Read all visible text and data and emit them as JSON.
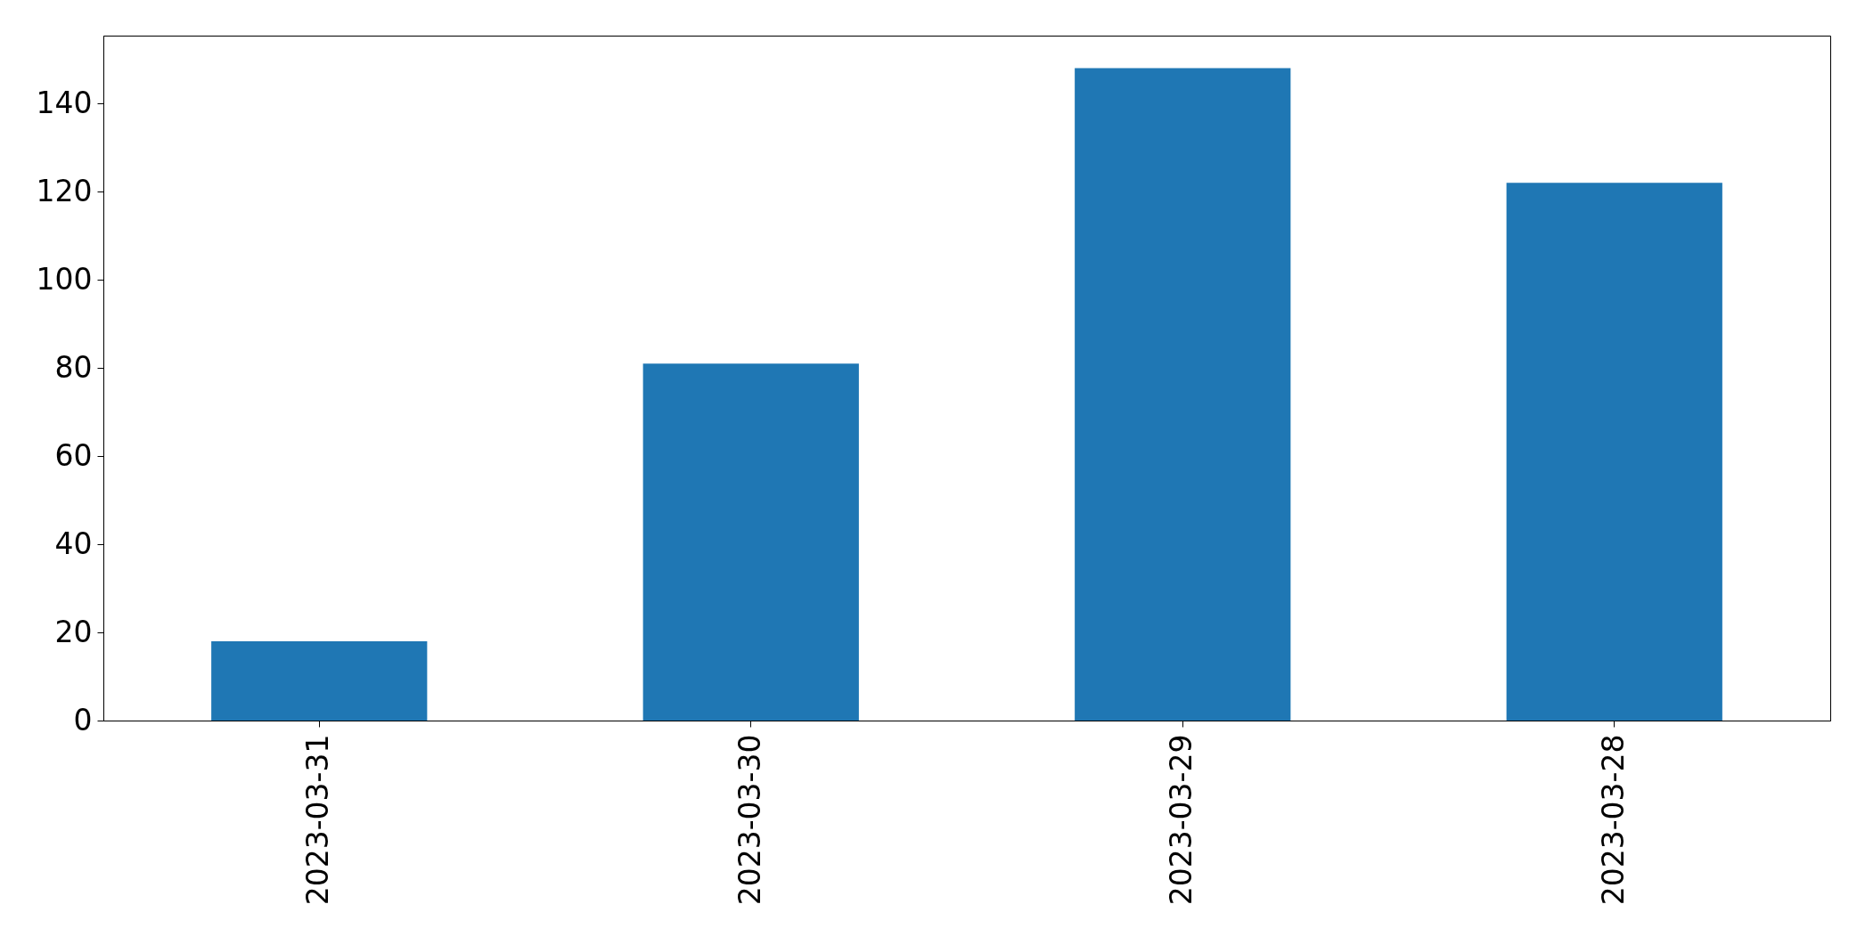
{
  "chart_data": {
    "type": "bar",
    "categories": [
      "2023-03-31",
      "2023-03-30",
      "2023-03-29",
      "2023-03-28"
    ],
    "values": [
      18,
      81,
      148,
      122
    ],
    "color": "#1f77b4",
    "ylim": [
      0,
      155.4
    ],
    "yticks": [
      0,
      20,
      40,
      60,
      80,
      100,
      120,
      140
    ]
  }
}
